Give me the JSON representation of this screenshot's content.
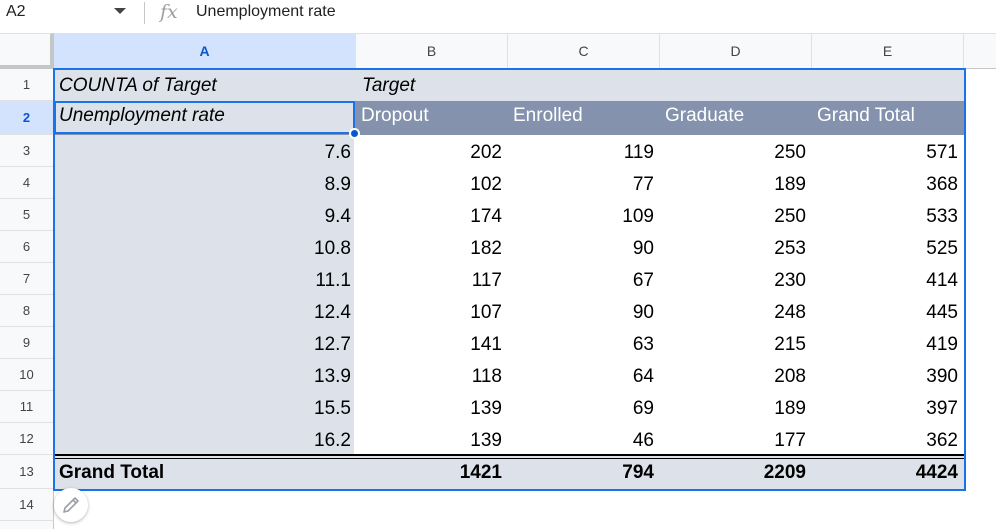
{
  "formula_bar": {
    "name_box": "A2",
    "fx_icon": "fx-icon",
    "content": "Unemployment rate"
  },
  "column_headers": [
    "A",
    "B",
    "C",
    "D",
    "E"
  ],
  "row_headers": [
    "1",
    "2",
    "3",
    "4",
    "5",
    "6",
    "7",
    "8",
    "9",
    "10",
    "11",
    "12",
    "13",
    "14"
  ],
  "pivot": {
    "title": "COUNTA of Target",
    "columns_field": "Target",
    "rows_field": "Unemployment rate",
    "column_labels": [
      "Dropout",
      "Enrolled",
      "Graduate",
      "Grand Total"
    ],
    "rows": [
      {
        "label": "7.6",
        "values": [
          "202",
          "119",
          "250",
          "571"
        ]
      },
      {
        "label": "8.9",
        "values": [
          "102",
          "77",
          "189",
          "368"
        ]
      },
      {
        "label": "9.4",
        "values": [
          "174",
          "109",
          "250",
          "533"
        ]
      },
      {
        "label": "10.8",
        "values": [
          "182",
          "90",
          "253",
          "525"
        ]
      },
      {
        "label": "11.1",
        "values": [
          "117",
          "67",
          "230",
          "414"
        ]
      },
      {
        "label": "12.4",
        "values": [
          "107",
          "90",
          "248",
          "445"
        ]
      },
      {
        "label": "12.7",
        "values": [
          "141",
          "63",
          "215",
          "419"
        ]
      },
      {
        "label": "13.9",
        "values": [
          "118",
          "64",
          "208",
          "390"
        ]
      },
      {
        "label": "15.5",
        "values": [
          "139",
          "69",
          "189",
          "397"
        ]
      },
      {
        "label": "16.2",
        "values": [
          "139",
          "46",
          "177",
          "362"
        ]
      }
    ],
    "grand_total": {
      "label": "Grand Total",
      "values": [
        "1421",
        "794",
        "2209",
        "4424"
      ]
    }
  },
  "colors": {
    "header_band": "#8592ad",
    "light_band": "#dde2ea",
    "selection": "#1a73e8"
  },
  "edit_button_icon": "pencil-icon"
}
